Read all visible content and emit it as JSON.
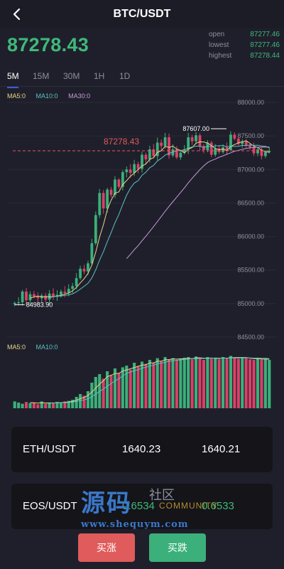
{
  "header": {
    "title": "BTC/USDT",
    "back_icon": "chevron-left-icon"
  },
  "ticker": {
    "price": "87278.43",
    "open_label": "open",
    "open_value": "87277.46",
    "lowest_label": "lowest",
    "lowest_value": "87277.46",
    "highest_label": "highest",
    "highest_value": "87278.44"
  },
  "intervals": [
    "5M",
    "15M",
    "30M",
    "1H",
    "1D"
  ],
  "active_interval": "5M",
  "ma_labels": {
    "ma5": "MA5:0",
    "ma10": "MA10:0",
    "ma30": "MA30:0"
  },
  "vol_ma_labels": {
    "ma5": "MA5:0",
    "ma10": "MA10:0"
  },
  "colors": {
    "up": "#3bb07a",
    "down": "#d9416a",
    "ma5": "#e8d88a",
    "ma10": "#5ac2c3",
    "ma30": "#c69ad8",
    "price_line": "#e05b5b"
  },
  "chart_data": {
    "type": "candlestick",
    "y_ticks": [
      "88000.00",
      "87500.00",
      "87000.00",
      "86500.00",
      "86000.00",
      "85500.00",
      "85000.00",
      "84500.00"
    ],
    "ylim": [
      84500,
      88000
    ],
    "current_price_label": "87278.43",
    "current_price": 87278.43,
    "high_label": "87607.00",
    "high_value": 87607.0,
    "low_label": "84983.90",
    "low_value": 84983.9,
    "closes": [
      85010,
      85020,
      85180,
      85050,
      85140,
      85110,
      85080,
      85120,
      85060,
      85150,
      85100,
      85130,
      85180,
      85160,
      85220,
      85260,
      85380,
      85520,
      85480,
      85600,
      85900,
      86320,
      86650,
      86420,
      86700,
      86620,
      86850,
      86740,
      86960,
      87000,
      86950,
      87080,
      87010,
      87220,
      87150,
      87300,
      87200,
      87400,
      87350,
      87480,
      87210,
      87300,
      87180,
      87250,
      87300,
      87480,
      87420,
      87510,
      87350,
      87290,
      87400,
      87220,
      87310,
      87260,
      87330,
      87290,
      87520,
      87460,
      87380,
      87420,
      87360,
      87330,
      87240,
      87300,
      87200,
      87260,
      87278
    ],
    "volumes": [
      0.12,
      0.1,
      0.08,
      0.11,
      0.09,
      0.1,
      0.07,
      0.12,
      0.08,
      0.1,
      0.09,
      0.11,
      0.1,
      0.12,
      0.13,
      0.15,
      0.2,
      0.25,
      0.22,
      0.3,
      0.45,
      0.55,
      0.6,
      0.52,
      0.65,
      0.58,
      0.7,
      0.62,
      0.72,
      0.75,
      0.68,
      0.8,
      0.74,
      0.82,
      0.78,
      0.85,
      0.8,
      0.88,
      0.83,
      0.9,
      0.86,
      0.88,
      0.84,
      0.87,
      0.89,
      0.9,
      0.86,
      0.91,
      0.88,
      0.85,
      0.9,
      0.87,
      0.89,
      0.86,
      0.9,
      0.88,
      0.92,
      0.89,
      0.87,
      0.9,
      0.88,
      0.86,
      0.85,
      0.88,
      0.86,
      0.87,
      0.85
    ]
  },
  "markets": [
    {
      "pair": "ETH/USDT",
      "value1": "1640.23",
      "value2": "1640.21"
    },
    {
      "pair": "EOS/USDT",
      "value1": "0.6534",
      "value2": "0.6533"
    }
  ],
  "watermark": {
    "big": "源码",
    "small": "社区",
    "community": "COMMUNITY",
    "url": "www.shequym.com"
  },
  "actions": {
    "buy_label": "买涨",
    "sell_label": "买跌"
  }
}
